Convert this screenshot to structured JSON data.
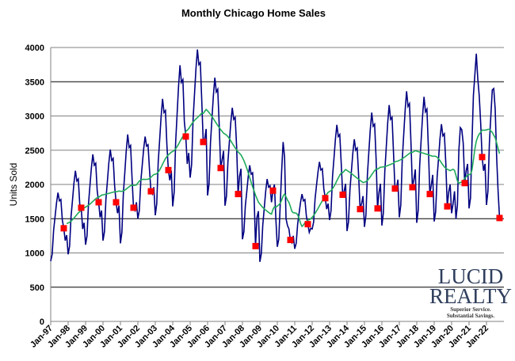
{
  "chart_data": {
    "type": "line",
    "title": "Monthly Chicago Home Sales",
    "xlabel": "",
    "ylabel": "Units Sold",
    "ylim": [
      0,
      4000
    ],
    "yticks": [
      "0",
      "500",
      "1000",
      "1500",
      "2000",
      "2500",
      "3000",
      "3500",
      "4000"
    ],
    "xticks": [
      "Jan-97",
      "Jan-98",
      "Jan-99",
      "Jan-00",
      "Jan-01",
      "Jan-02",
      "Jan-03",
      "Jan-04",
      "Jan-05",
      "Jan-06",
      "Jan-07",
      "Jan-08",
      "Jan-09",
      "Jan-10",
      "Jan-11",
      "Jan-12",
      "Jan-13",
      "Jan-14",
      "Jan-15",
      "Jan-16",
      "Jan-17",
      "Jan-18",
      "Jan-19",
      "Jan-20",
      "Jan-21",
      "Jan-22"
    ],
    "x_start": "Jan-97",
    "x_end": "Oct-22",
    "grid": true,
    "legend": "none",
    "series": [
      {
        "role": "monthly sales",
        "color": "#000080",
        "values": [
          880,
          980,
          1330,
          1530,
          1730,
          1880,
          1760,
          1780,
          1480,
          1360,
          1180,
          1260,
          980,
          1100,
          1530,
          1770,
          2020,
          2200,
          2050,
          2080,
          1710,
          1660,
          1350,
          1440,
          1120,
          1250,
          1710,
          1980,
          2240,
          2440,
          2280,
          2310,
          1910,
          1740,
          1520,
          1620,
          1180,
          1310,
          1780,
          2040,
          2310,
          2510,
          2350,
          2380,
          1980,
          1740,
          1580,
          1690,
          1140,
          1300,
          1860,
          2170,
          2490,
          2730,
          2540,
          2570,
          2090,
          1660,
          1620,
          1740,
          1500,
          1620,
          2040,
          2280,
          2520,
          2700,
          2560,
          2580,
          2220,
          1900,
          1860,
          1960,
          1550,
          1720,
          2320,
          2650,
          2990,
          3250,
          3050,
          3080,
          2570,
          2210,
          2060,
          2200,
          1680,
          1890,
          2610,
          3020,
          3430,
          3740,
          3490,
          3530,
          2920,
          2700,
          2300,
          2460,
          2100,
          2290,
          2940,
          3320,
          3690,
          3970,
          3750,
          3780,
          3220,
          2620,
          2660,
          2810,
          1840,
          2010,
          2610,
          2960,
          3300,
          3560,
          3350,
          3390,
          2870,
          2240,
          2360,
          2490,
          1690,
          1830,
          2330,
          2620,
          2910,
          3120,
          2950,
          2980,
          2550,
          1860,
          2120,
          2230,
          1200,
          1310,
          1690,
          1900,
          2120,
          2280,
          2150,
          2170,
          1850,
          1100,
          1520,
          1610,
          870,
          990,
          1410,
          1650,
          1900,
          2080,
          1960,
          1980,
          1740,
          1910,
          2000,
          1500,
          1090,
          1200,
          1700,
          2200,
          2620,
          2400,
          1500,
          1400,
          1350,
          1190,
          1150,
          1250,
          1060,
          1140,
          1420,
          1580,
          1740,
          1860,
          1760,
          1780,
          1540,
          1420,
          1300,
          1360,
          1350,
          1450,
          1790,
          1990,
          2180,
          2330,
          2210,
          2230,
          1940,
          1800,
          1640,
          1720,
          1480,
          1620,
          2110,
          2380,
          2660,
          2870,
          2700,
          2730,
          2310,
          1850,
          1900,
          2010,
          1320,
          1450,
          1920,
          2190,
          2460,
          2660,
          2500,
          2530,
          2120,
          1640,
          1720,
          1830,
          1380,
          1550,
          2130,
          2470,
          2800,
          3050,
          2850,
          2880,
          2380,
          1650,
          1880,
          2010,
          1400,
          1580,
          2190,
          2540,
          2900,
          3160,
          2950,
          2980,
          2460,
          1940,
          1930,
          2070,
          1520,
          1700,
          2350,
          2720,
          3080,
          3360,
          3140,
          3180,
          2620,
          1960,
          2070,
          2220,
          1440,
          1620,
          2270,
          2640,
          3000,
          3280,
          3060,
          3100,
          2540,
          1860,
          1990,
          2140,
          1460,
          1600,
          2100,
          2380,
          2670,
          2880,
          2710,
          2740,
          2310,
          1680,
          1890,
          2000,
          1580,
          1720,
          1900,
          1500,
          1700,
          2500,
          2830,
          2800,
          2600,
          2020,
          2200,
          2300,
          1650,
          1800,
          2600,
          3300,
          3600,
          3910,
          3550,
          3300,
          2900,
          2400,
          2200,
          2300,
          1700,
          1900,
          2600,
          3000,
          3380,
          3400,
          3100,
          2400,
          1900,
          1510
        ]
      },
      {
        "role": "12-month moving average",
        "color": "#1faa5a"
      },
      {
        "role": "October values",
        "color": "#ff0000",
        "marker": "square"
      }
    ]
  },
  "logo": {
    "line1": "LUCID",
    "line2": "REALTY",
    "tagline1": "Superior Service.",
    "tagline2": "Substantial Savings."
  }
}
